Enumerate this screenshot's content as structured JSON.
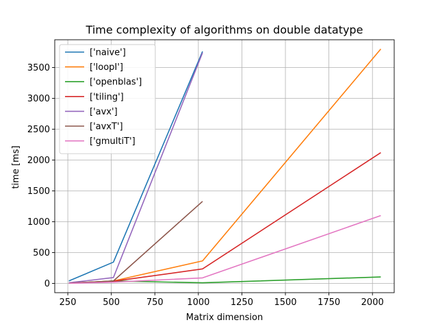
{
  "chart_data": {
    "type": "line",
    "title": "Time complexity of algorithms on double datatype",
    "xlabel": "Matrix dimension",
    "ylabel": "time [ms]",
    "xlim": [
      175,
      2125
    ],
    "ylim": [
      -150,
      3950
    ],
    "xticks": [
      250,
      500,
      750,
      1000,
      1250,
      1500,
      1750,
      2000
    ],
    "yticks": [
      0,
      500,
      1000,
      1500,
      2000,
      2500,
      3000,
      3500
    ],
    "grid": true,
    "legend_position": "upper-left",
    "series": [
      {
        "name": "['naive']",
        "color": "#1f77b4",
        "x": [
          256,
          512,
          1024
        ],
        "y": [
          40,
          345,
          3760
        ]
      },
      {
        "name": "['loopI']",
        "color": "#ff7f0e",
        "x": [
          256,
          512,
          1024,
          2048
        ],
        "y": [
          5,
          40,
          365,
          3800
        ]
      },
      {
        "name": "['openblas']",
        "color": "#2ca02c",
        "x": [
          256,
          512,
          1024,
          2048
        ],
        "y": [
          2,
          40,
          10,
          105
        ]
      },
      {
        "name": "['tiling']",
        "color": "#d62728",
        "x": [
          256,
          512,
          1024,
          2048
        ],
        "y": [
          5,
          35,
          235,
          2120
        ]
      },
      {
        "name": "['avx']",
        "color": "#9467bd",
        "x": [
          256,
          512,
          1024
        ],
        "y": [
          10,
          95,
          3740
        ]
      },
      {
        "name": "['avxT']",
        "color": "#8c564b",
        "x": [
          256,
          512,
          1024
        ],
        "y": [
          5,
          40,
          1330
        ]
      },
      {
        "name": "['gmultiT']",
        "color": "#e377c2",
        "x": [
          256,
          512,
          1024,
          2048
        ],
        "y": [
          2,
          20,
          90,
          1100
        ]
      }
    ]
  }
}
